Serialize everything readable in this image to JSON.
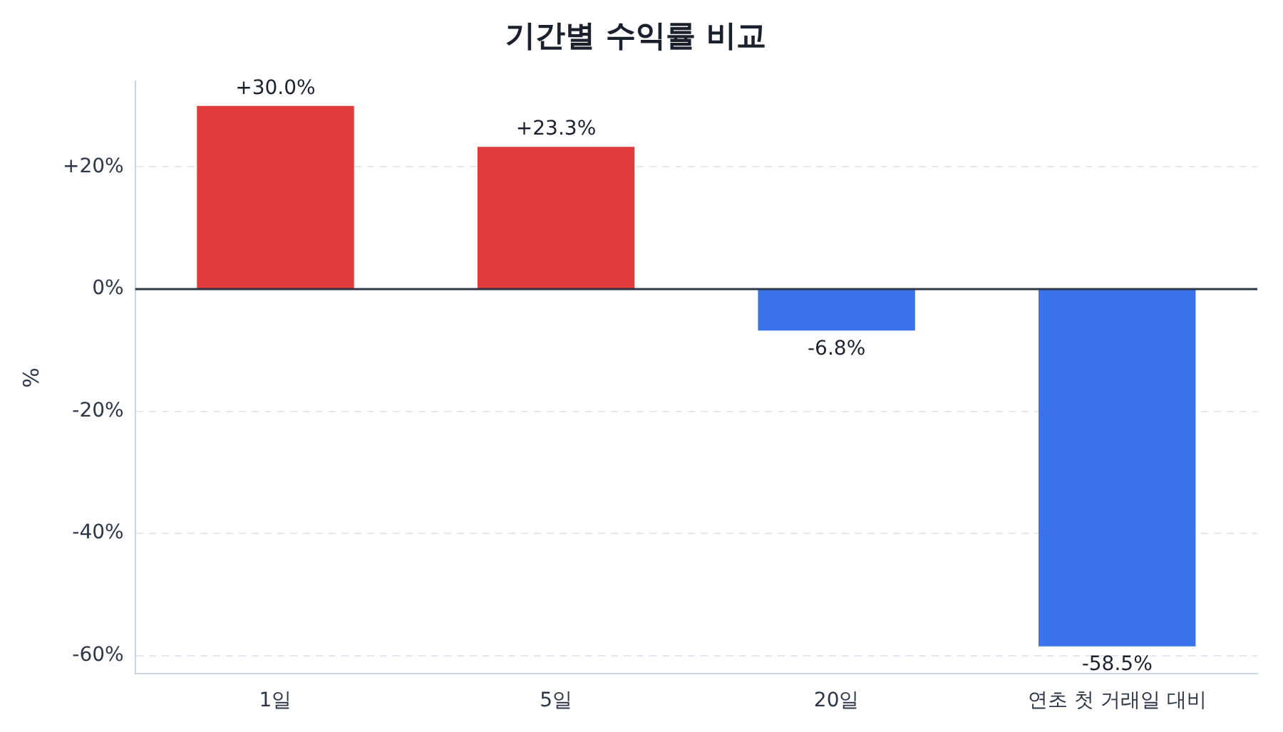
{
  "chart_data": {
    "type": "bar",
    "title": "기간별 수익률 비교",
    "ylabel": "%",
    "categories": [
      "1일",
      "5일",
      "20일",
      "연초 첫 거래일 대비"
    ],
    "values": [
      30.0,
      23.3,
      -6.8,
      -58.5
    ],
    "colors": [
      "#e03a3a",
      "#e03a3a",
      "#3b73ea",
      "#3b73ea"
    ],
    "value_labels": [
      "+30.0%",
      "+23.3%",
      "-6.8%",
      "-58.5%"
    ],
    "ylim": [
      -63,
      34
    ],
    "yticks": [
      {
        "value": -60,
        "label": "-60%"
      },
      {
        "value": -40,
        "label": "-40%"
      },
      {
        "value": -20,
        "label": "-20%"
      },
      {
        "value": 0,
        "label": "0%"
      },
      {
        "value": 20,
        "label": "+20%"
      }
    ],
    "ref_lines": [
      {
        "axis": "y",
        "value": 0,
        "color": "#2d3748"
      }
    ],
    "grid": "y",
    "legend": false
  }
}
